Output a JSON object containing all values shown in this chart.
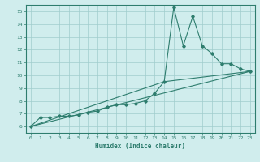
{
  "xlabel": "Humidex (Indice chaleur)",
  "ylabel": "",
  "xlim": [
    -0.5,
    23.5
  ],
  "ylim": [
    5.5,
    15.5
  ],
  "xticks": [
    0,
    1,
    2,
    3,
    4,
    5,
    6,
    7,
    8,
    9,
    10,
    11,
    12,
    13,
    14,
    15,
    16,
    17,
    18,
    19,
    20,
    21,
    22,
    23
  ],
  "yticks": [
    6,
    7,
    8,
    9,
    10,
    11,
    12,
    13,
    14,
    15
  ],
  "line_color": "#2e7d6e",
  "bg_color": "#d0eded",
  "grid_color": "#a0cccc",
  "line1_x": [
    0,
    1,
    2,
    3,
    4,
    5,
    6,
    7,
    8,
    9,
    10,
    11,
    12,
    13,
    14,
    15,
    16,
    17,
    18,
    19,
    20,
    21,
    22,
    23
  ],
  "line1_y": [
    6.0,
    6.7,
    6.7,
    6.8,
    6.8,
    6.9,
    7.1,
    7.2,
    7.5,
    7.7,
    7.7,
    7.8,
    8.0,
    8.6,
    9.5,
    15.3,
    12.3,
    14.6,
    12.3,
    11.7,
    10.9,
    10.9,
    10.5,
    10.3
  ],
  "line2_x": [
    0,
    23
  ],
  "line2_y": [
    6.0,
    10.3
  ],
  "line3_x": [
    0,
    14,
    23
  ],
  "line3_y": [
    6.0,
    9.5,
    10.3
  ]
}
